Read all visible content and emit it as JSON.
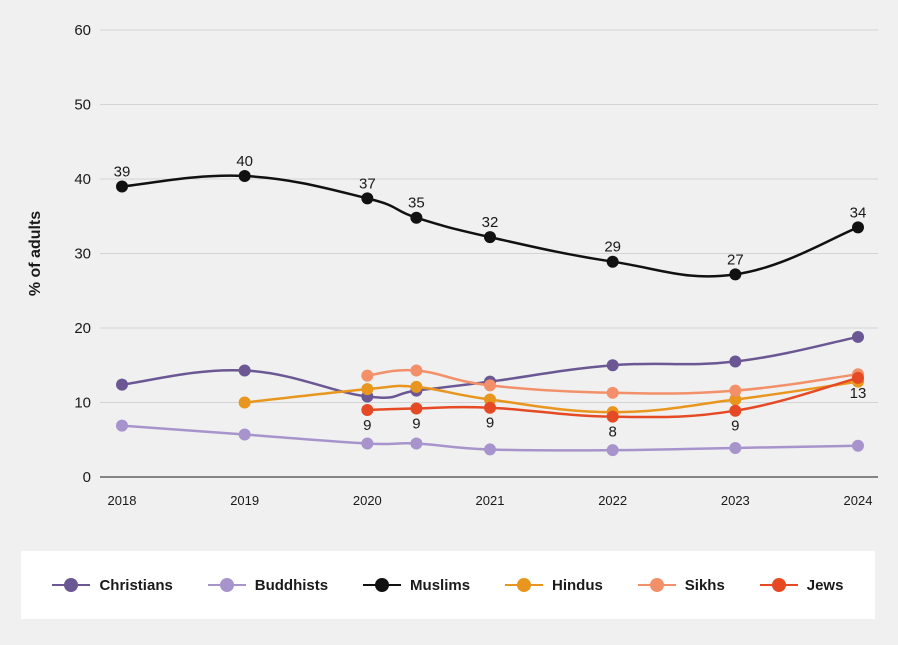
{
  "chart_data": {
    "type": "line",
    "title": "",
    "ylabel": "% of adults",
    "xlabel": "",
    "ylim": [
      0,
      60
    ],
    "yticks": [
      0,
      10,
      20,
      30,
      40,
      50,
      60
    ],
    "xticks": [
      "2018",
      "2019",
      "2020",
      "2021",
      "2022",
      "2023",
      "2024"
    ],
    "grid": true,
    "legend_position": "bottom",
    "series": [
      {
        "name": "Christians",
        "color": "#6b5794",
        "label_pos": "above",
        "points": [
          [
            2018,
            12.4
          ],
          [
            2019,
            14.3
          ],
          [
            2020,
            10.8
          ],
          [
            2020.4,
            11.6
          ],
          [
            2021,
            12.8
          ],
          [
            2022,
            15.0
          ],
          [
            2023,
            15.5
          ],
          [
            2024,
            18.8
          ]
        ],
        "labels": []
      },
      {
        "name": "Buddhists",
        "color": "#a894cc",
        "label_pos": "above",
        "points": [
          [
            2018,
            6.9
          ],
          [
            2019,
            5.7
          ],
          [
            2020,
            4.5
          ],
          [
            2020.4,
            4.5
          ],
          [
            2021,
            3.7
          ],
          [
            2022,
            3.6
          ],
          [
            2023,
            3.9
          ],
          [
            2024,
            4.2
          ]
        ],
        "labels": []
      },
      {
        "name": "Muslims",
        "color": "#111111",
        "label_pos": "above",
        "points": [
          [
            2018,
            39.0
          ],
          [
            2019,
            40.4
          ],
          [
            2020,
            37.4
          ],
          [
            2020.4,
            34.8
          ],
          [
            2021,
            32.2
          ],
          [
            2022,
            28.9
          ],
          [
            2023,
            27.2
          ],
          [
            2024,
            33.5
          ]
        ],
        "labels": [
          "39",
          "40",
          "37",
          "35",
          "32",
          "29",
          "27",
          "34"
        ]
      },
      {
        "name": "Hindus",
        "color": "#e8961e",
        "label_pos": "above",
        "points": [
          [
            2019,
            10.0
          ],
          [
            2020,
            11.8
          ],
          [
            2020.4,
            12.1
          ],
          [
            2021,
            10.4
          ],
          [
            2022,
            8.7
          ],
          [
            2023,
            10.4
          ],
          [
            2024,
            12.8
          ]
        ],
        "labels": []
      },
      {
        "name": "Sikhs",
        "color": "#f3906a",
        "label_pos": "above",
        "points": [
          [
            2020,
            13.6
          ],
          [
            2020.4,
            14.3
          ],
          [
            2021,
            12.3
          ],
          [
            2022,
            11.3
          ],
          [
            2023,
            11.6
          ],
          [
            2024,
            13.8
          ]
        ],
        "labels": []
      },
      {
        "name": "Jews",
        "color": "#e54a24",
        "label_pos": "below",
        "points": [
          [
            2020,
            9.0
          ],
          [
            2020.4,
            9.2
          ],
          [
            2021,
            9.3
          ],
          [
            2022,
            8.1
          ],
          [
            2023,
            8.9
          ],
          [
            2024,
            13.3
          ]
        ],
        "labels": [
          "9",
          "9",
          "9",
          "8",
          "9",
          "13"
        ]
      }
    ]
  },
  "legend": [
    {
      "label": "Christians",
      "color": "#6b5794"
    },
    {
      "label": "Buddhists",
      "color": "#a894cc"
    },
    {
      "label": "Muslims",
      "color": "#111111"
    },
    {
      "label": "Hindus",
      "color": "#e8961e"
    },
    {
      "label": "Sikhs",
      "color": "#f3906a"
    },
    {
      "label": "Jews",
      "color": "#e54a24"
    }
  ]
}
